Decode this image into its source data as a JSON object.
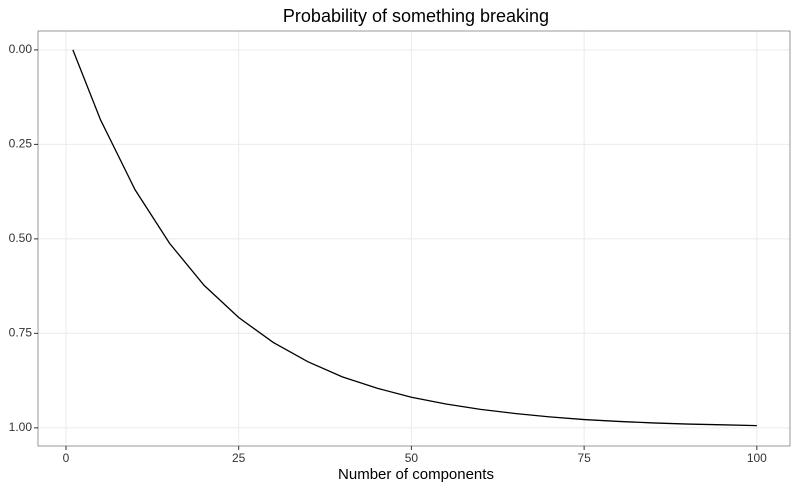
{
  "chart_data": {
    "type": "line",
    "title": "Probability of something breaking",
    "x_label": "Number of components",
    "x": [
      1,
      5,
      10,
      15,
      20,
      25,
      30,
      35,
      40,
      45,
      50,
      55,
      60,
      65,
      70,
      75,
      80,
      85,
      90,
      95,
      100
    ],
    "series": [
      {
        "color": "#000000",
        "values": [
          0,
          0.185,
          0.37,
          0.512,
          0.623,
          0.708,
          0.774,
          0.825,
          0.865,
          0.895,
          0.919,
          0.937,
          0.951,
          0.962,
          0.971,
          0.978,
          0.983,
          0.987,
          0.99,
          0.992,
          0.994
        ]
      }
    ],
    "xlim": [
      -4.05,
      104.8
    ],
    "xticks": [
      0,
      25,
      50,
      75,
      100
    ],
    "ylim": [
      -0.05,
      1.048
    ],
    "y_reversed": true,
    "yticks": [
      {
        "value": 0,
        "label": "0.00"
      },
      {
        "value": 0.25,
        "label": "0.25"
      },
      {
        "value": 0.5,
        "label": "0.50"
      },
      {
        "value": 0.75,
        "label": "0.75"
      },
      {
        "value": 1,
        "label": "1.00"
      }
    ],
    "grid": true
  }
}
